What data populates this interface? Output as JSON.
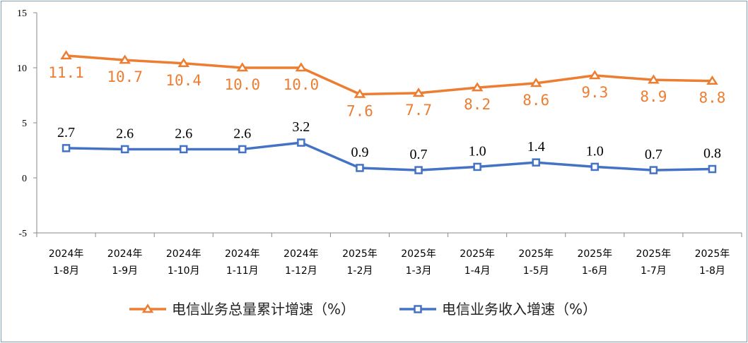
{
  "chart_data": {
    "type": "line",
    "categories": [
      [
        "2024年",
        "1-8月"
      ],
      [
        "2024年",
        "1-9月"
      ],
      [
        "2024年",
        "1-10月"
      ],
      [
        "2024年",
        "1-11月"
      ],
      [
        "2024年",
        "1-12月"
      ],
      [
        "2025年",
        "1-2月"
      ],
      [
        "2025年",
        "1-3月"
      ],
      [
        "2025年",
        "1-4月"
      ],
      [
        "2025年",
        "1-5月"
      ],
      [
        "2025年",
        "1-6月"
      ],
      [
        "2025年",
        "1-7月"
      ],
      [
        "2025年",
        "1-8月"
      ]
    ],
    "series": [
      {
        "name": "电信业务总量累计增速（%）",
        "color": "#ed7d31",
        "marker": "triangle",
        "values": [
          11.1,
          10.7,
          10.4,
          10.0,
          10.0,
          7.6,
          7.7,
          8.2,
          8.6,
          9.3,
          8.9,
          8.8
        ],
        "labels": [
          "11.1",
          "10.7",
          "10.4",
          "10.0",
          "10.0",
          "7.6",
          "7.7",
          "8.2",
          "8.6",
          "9.3",
          "8.9",
          "8.8"
        ]
      },
      {
        "name": "电信业务收入增速（%）",
        "color": "#4472c4",
        "marker": "square",
        "values": [
          2.7,
          2.6,
          2.6,
          2.6,
          3.2,
          0.9,
          0.7,
          1.0,
          1.4,
          1.0,
          0.7,
          0.8
        ],
        "labels": [
          "2.7",
          "2.6",
          "2.6",
          "2.6",
          "3.2",
          "0.9",
          "0.7",
          "1.0",
          "1.4",
          "1.0",
          "0.7",
          "0.8"
        ]
      }
    ],
    "ylim": [
      -5,
      15
    ],
    "yticks": [
      "15",
      "10",
      "5",
      "0",
      "-5"
    ],
    "ytick_values": [
      15,
      10,
      5,
      0,
      -5
    ],
    "grid": false,
    "legend": "bottom"
  }
}
